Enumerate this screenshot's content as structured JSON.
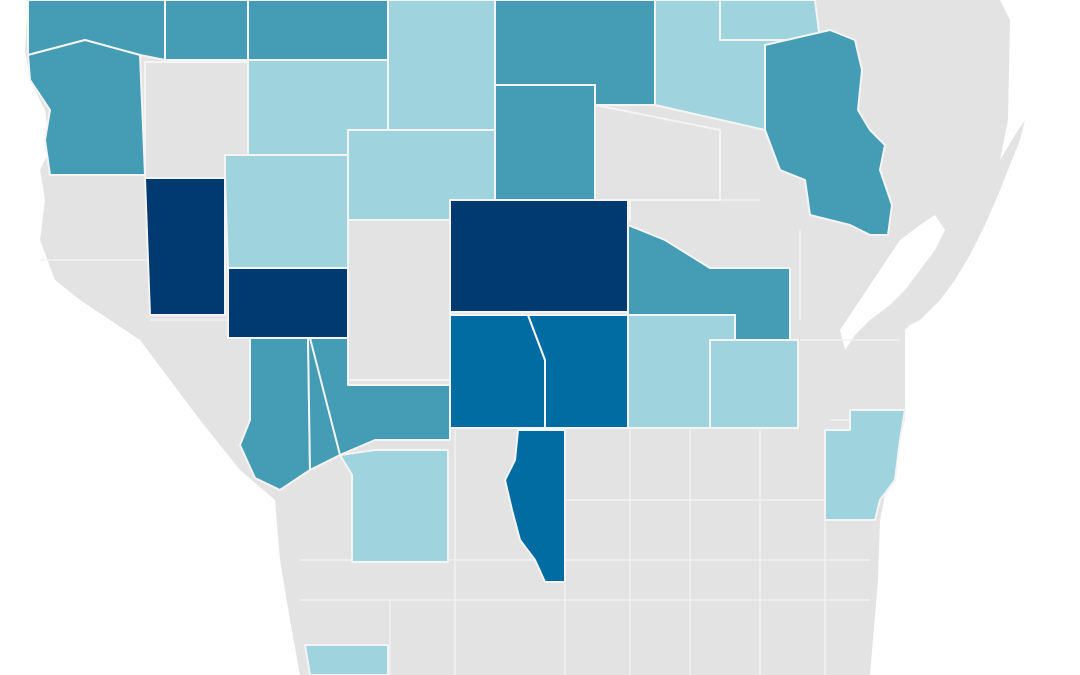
{
  "map": {
    "colors": {
      "background": "#ffffff",
      "no_data": "#e3e3e3",
      "level_1": "#9fd3de",
      "level_2": "#449cb5",
      "level_3": "#006ca1",
      "level_4": "#003a70",
      "border": "#f4f4f4"
    },
    "regions": [
      {
        "name": "county-nw-1",
        "level": 2
      },
      {
        "name": "county-nw-2",
        "level": 2
      },
      {
        "name": "county-nw-3",
        "level": 2
      },
      {
        "name": "county-n-1",
        "level": 1
      },
      {
        "name": "county-n-2",
        "level": 2
      },
      {
        "name": "county-n-3",
        "level": 1
      },
      {
        "name": "county-n-4",
        "level": 1
      },
      {
        "name": "county-ne-1",
        "level": 2
      },
      {
        "name": "county-w-1",
        "level": 2
      },
      {
        "name": "county-w-2",
        "level": 0
      },
      {
        "name": "county-w-3",
        "level": 1
      },
      {
        "name": "county-c-1",
        "level": 1
      },
      {
        "name": "county-c-2",
        "level": 2
      },
      {
        "name": "county-c-3",
        "level": 0
      },
      {
        "name": "county-w-4",
        "level": 4
      },
      {
        "name": "county-w-5",
        "level": 1
      },
      {
        "name": "county-w-6",
        "level": 4
      },
      {
        "name": "county-c-4",
        "level": 0
      },
      {
        "name": "county-c-5",
        "level": 4
      },
      {
        "name": "county-c-6",
        "level": 2
      },
      {
        "name": "county-c-7",
        "level": 2
      },
      {
        "name": "county-c-8",
        "level": 3
      },
      {
        "name": "county-c-9",
        "level": 3
      },
      {
        "name": "county-c-10",
        "level": 1
      },
      {
        "name": "county-c-11",
        "level": 1
      },
      {
        "name": "county-sw-1",
        "level": 2
      },
      {
        "name": "county-sw-2",
        "level": 2
      },
      {
        "name": "county-sw-3",
        "level": 1
      },
      {
        "name": "county-s-1",
        "level": 3
      },
      {
        "name": "county-e-1",
        "level": 1
      },
      {
        "name": "county-sw-4",
        "level": 1
      }
    ]
  }
}
